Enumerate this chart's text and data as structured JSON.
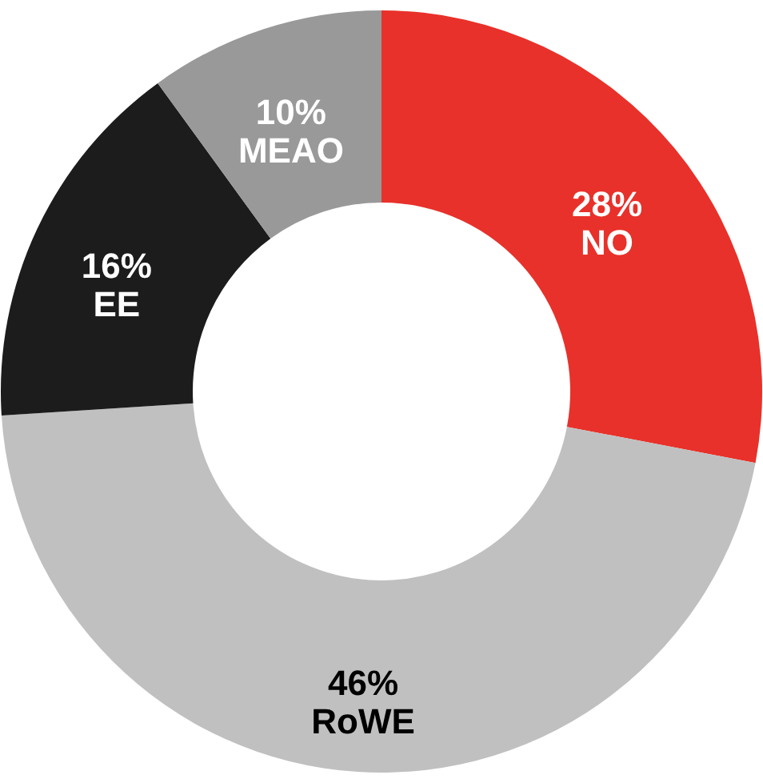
{
  "chart_data": {
    "type": "donut",
    "categories": [
      "NO",
      "RoWE",
      "EE",
      "MEAO"
    ],
    "values": [
      28,
      46,
      16,
      10
    ],
    "colors": [
      "#e8312a",
      "#c0c0c0",
      "#1c1c1c",
      "#999999"
    ],
    "value_labels": [
      "28%",
      "46%",
      "16%",
      "10%"
    ],
    "legend": false
  }
}
